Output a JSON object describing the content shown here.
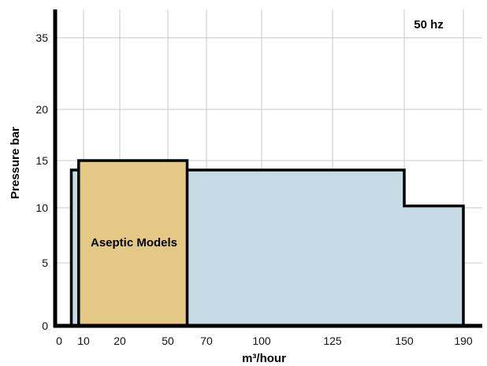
{
  "chart_data": {
    "type": "area",
    "title": "",
    "xlabel": "m³/hour",
    "ylabel": "Pressure bar",
    "grid": true,
    "x_tick_labels": [
      "0",
      "10",
      "20",
      "50",
      "70",
      "100",
      "125",
      "150",
      "190"
    ],
    "y_tick_labels": [
      "0",
      "5",
      "10",
      "15",
      "20",
      "35"
    ],
    "annotations": {
      "frequency": "50 hz",
      "aseptic_label": "Aseptic Models"
    },
    "series": [
      {
        "name": "",
        "polygon": [
          {
            "x": 5,
            "y": 0
          },
          {
            "x": 5,
            "y": 14
          },
          {
            "x": 150,
            "y": 14
          },
          {
            "x": 150,
            "y": 10.2
          },
          {
            "x": 190,
            "y": 10.2
          },
          {
            "x": 190,
            "y": 0
          }
        ]
      },
      {
        "name": "Aseptic Models",
        "polygon": [
          {
            "x": 8,
            "y": 0
          },
          {
            "x": 8,
            "y": 15
          },
          {
            "x": 60,
            "y": 15
          },
          {
            "x": 60,
            "y": 0
          }
        ]
      }
    ],
    "colors": {
      "blue_fill": "#c6dbe6",
      "aseptic_fill": "#e3c985",
      "outline": "#000000",
      "grid": "#c8c8c8"
    }
  }
}
